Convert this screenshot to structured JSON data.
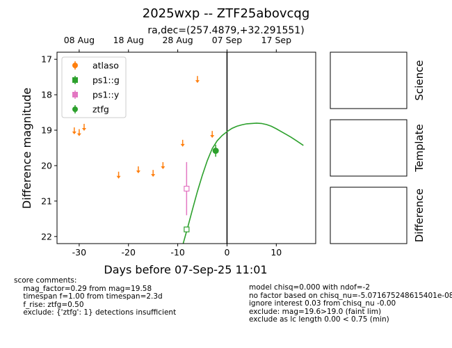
{
  "chart_data": {
    "type": "scatter",
    "title": "2025wxp -- ZTF25abovcqg",
    "subtitle": "ra,dec=(257.4879,+32.291551)",
    "xlabel": "Days before 07-Sep-25 11:01",
    "ylabel": "Difference magnitude",
    "xlim": [
      -34.5,
      18
    ],
    "ylim": [
      22.2,
      16.8
    ],
    "y_inverted": true,
    "x_ticks": [
      -30,
      -20,
      -10,
      0,
      10
    ],
    "y_ticks": [
      17,
      18,
      19,
      20,
      21,
      22
    ],
    "top_axis_ticks": [
      {
        "label": "08 Aug",
        "x": -30
      },
      {
        "label": "18 Aug",
        "x": -20
      },
      {
        "label": "28 Aug",
        "x": -10
      },
      {
        "label": "07 Sep",
        "x": 0
      },
      {
        "label": "17 Sep",
        "x": 10
      }
    ],
    "vline_x": 0,
    "legend_position": "upper-left",
    "legend": [
      "atlaso",
      "ps1::g",
      "ps1::y",
      "ztfg"
    ],
    "series": [
      {
        "name": "atlaso",
        "color": "#ff7f0e",
        "kind": "upper-limit",
        "points": [
          {
            "x": -31,
            "y": 19.0
          },
          {
            "x": -30,
            "y": 19.05
          },
          {
            "x": -29,
            "y": 18.9
          },
          {
            "x": -22,
            "y": 20.25
          },
          {
            "x": -18,
            "y": 20.1
          },
          {
            "x": -15,
            "y": 20.2
          },
          {
            "x": -13,
            "y": 19.98
          },
          {
            "x": -9,
            "y": 19.35
          },
          {
            "x": -6,
            "y": 17.55
          },
          {
            "x": -3,
            "y": 19.1
          }
        ]
      },
      {
        "name": "ps1::g",
        "color": "#2ca02c",
        "kind": "open-square",
        "points": [
          {
            "x": -8.2,
            "y": 21.8
          }
        ]
      },
      {
        "name": "ps1::y",
        "color": "#e377c2",
        "kind": "open-square",
        "points": [
          {
            "x": -8.2,
            "y": 20.65,
            "err": 0.75
          }
        ]
      },
      {
        "name": "ztfg",
        "color": "#2ca02c",
        "kind": "circle",
        "points": [
          {
            "x": -2.3,
            "y": 19.58,
            "err": 0.17
          }
        ]
      }
    ],
    "model_curve": {
      "color": "#2ca02c",
      "x": [
        -8.9,
        -8,
        -7,
        -6,
        -5,
        -4,
        -3,
        -2,
        -1,
        0,
        1,
        2,
        3,
        4,
        5,
        6,
        7,
        8,
        9,
        10,
        11,
        12,
        13,
        14,
        15.5
      ],
      "y": [
        22.2,
        21.75,
        21.23,
        20.73,
        20.27,
        19.86,
        19.52,
        19.3,
        19.15,
        19.04,
        18.95,
        18.89,
        18.85,
        18.82,
        18.81,
        18.8,
        18.81,
        18.84,
        18.89,
        18.96,
        19.04,
        19.12,
        19.2,
        19.29,
        19.43
      ]
    },
    "cutouts": [
      "Science",
      "Template",
      "Difference"
    ]
  },
  "comments_left": [
    "score comments:",
    "    mag_factor=0.29 from mag=19.58",
    "    timespan f=1.00 from timespan=2.3d",
    "    f_rise: ztfg=0.50",
    "    exclude: {'ztfg': 1} detections insufficient"
  ],
  "comments_right": [
    "model chisq=0.000 with ndof=-2",
    "no factor based on chisq_nu=-5.071675248615401e-08",
    "ignore interest 0.03 from chisq_nu -0.00",
    "exclude: mag=19.6>19.0 (faint lim)",
    "exclude as lc length 0.00 < 0.75 (min)"
  ]
}
